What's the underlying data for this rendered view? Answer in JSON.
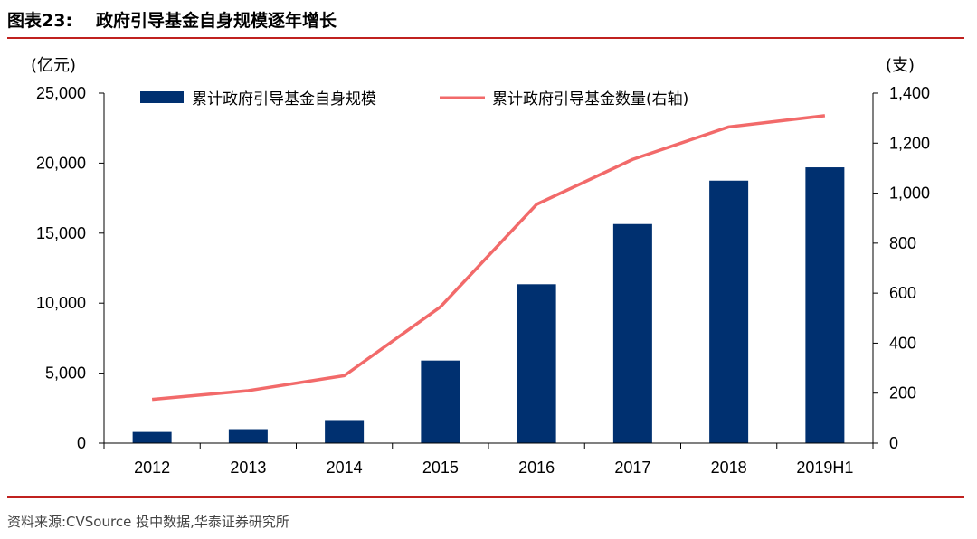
{
  "header": {
    "figure_no": "图表23:",
    "title": "政府引导基金自身规模逐年增长"
  },
  "footer": {
    "source": "资料来源:CVSource 投中数据,华泰证券研究所"
  },
  "colors": {
    "bar": "#003070",
    "line": "#f26a6a",
    "rule": "#c0211f"
  },
  "chart_data": {
    "type": "bar",
    "categories": [
      "2012",
      "2013",
      "2014",
      "2015",
      "2016",
      "2017",
      "2018",
      "2019H1"
    ],
    "y_left": {
      "unit": "(亿元)",
      "ylim": [
        0,
        25000
      ],
      "ticks": [
        "0",
        "5,000",
        "10,000",
        "15,000",
        "20,000",
        "25,000"
      ]
    },
    "y_right": {
      "unit": "(支)",
      "ylim": [
        0,
        1400
      ],
      "ticks": [
        "0",
        "200",
        "400",
        "600",
        "800",
        "1,000",
        "1,200",
        "1,400"
      ]
    },
    "series": [
      {
        "name": "累计政府引导基金自身规模",
        "type": "bar",
        "axis": "left",
        "values": [
          800,
          1000,
          1650,
          5900,
          11350,
          15650,
          18750,
          19700
        ]
      },
      {
        "name": "累计政府引导基金数量(右轴)",
        "type": "line",
        "axis": "right",
        "values": [
          175,
          210,
          270,
          545,
          955,
          1135,
          1265,
          1310
        ]
      }
    ],
    "legend": "top",
    "grid": false
  }
}
